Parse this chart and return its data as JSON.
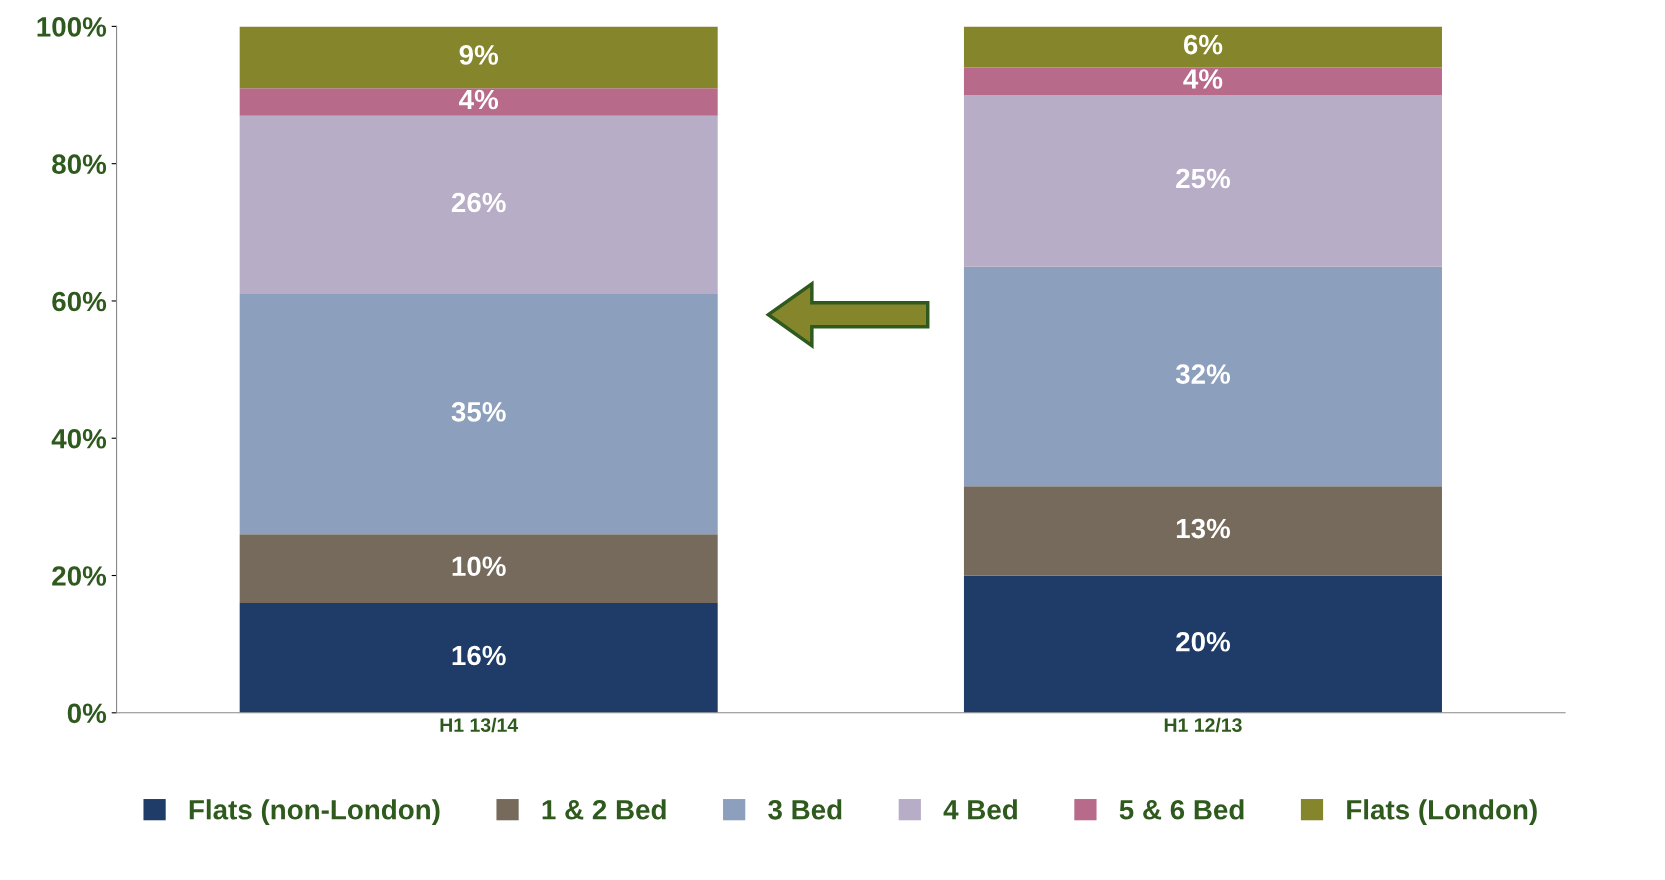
{
  "chart_data": {
    "type": "bar",
    "stacked": true,
    "categories": [
      "H1 13/14",
      "H1 12/13"
    ],
    "series": [
      {
        "name": "Flats (non-London)",
        "color": "#1f3b68",
        "values": [
          16,
          20
        ],
        "value_labels": [
          "16%",
          "20%"
        ]
      },
      {
        "name": "1 & 2 Bed",
        "color": "#756a5c",
        "values": [
          10,
          13
        ],
        "value_labels": [
          "10%",
          "13%"
        ]
      },
      {
        "name": "3 Bed",
        "color": "#8c9fbc",
        "values": [
          35,
          32
        ],
        "value_labels": [
          "35%",
          "32%"
        ]
      },
      {
        "name": "4 Bed",
        "color": "#b7adc6",
        "values": [
          26,
          25
        ],
        "value_labels": [
          "26%",
          "25%"
        ]
      },
      {
        "name": "5 & 6 Bed",
        "color": "#b86a8a",
        "values": [
          4,
          4
        ],
        "value_labels": [
          "4%",
          "4%"
        ]
      },
      {
        "name": "Flats (London)",
        "color": "#85852c",
        "values": [
          9,
          6
        ],
        "value_labels": [
          "9%",
          "6%"
        ]
      }
    ],
    "ylim": [
      0,
      100
    ],
    "yticks": [
      {
        "value": 0,
        "label": "0%"
      },
      {
        "value": 20,
        "label": "20%"
      },
      {
        "value": 40,
        "label": "40%"
      },
      {
        "value": 60,
        "label": "60%"
      },
      {
        "value": 80,
        "label": "80%"
      },
      {
        "value": 100,
        "label": "100%"
      }
    ],
    "legend": "bottom",
    "grid": false
  }
}
